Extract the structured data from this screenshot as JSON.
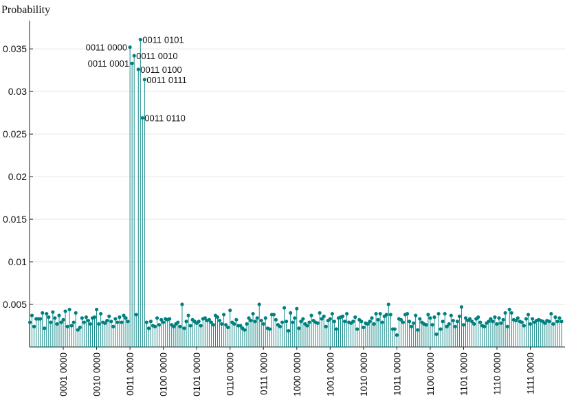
{
  "chart_data": {
    "type": "stem",
    "title": "",
    "ylabel": "Probability",
    "xlabel": "",
    "ylim": [
      0,
      0.0385
    ],
    "xlim": [
      -0.5,
      255.5
    ],
    "grid": "horizontal",
    "color": "#00807f",
    "n_states": 256,
    "yticks": [
      0.005,
      0.01,
      0.015,
      0.02,
      0.025,
      0.03,
      0.035
    ],
    "ytick_labels": [
      "0.005",
      "0.01",
      "0.015",
      "0.02",
      "0.025",
      "0.03",
      "0.035"
    ],
    "xtick_positions": [
      16,
      32,
      48,
      64,
      80,
      96,
      112,
      128,
      144,
      160,
      176,
      192,
      208,
      224,
      240
    ],
    "xtick_labels": [
      "0001 0000",
      "0010 0000",
      "0011 0000",
      "0100 0000",
      "0101 0000",
      "0110 0000",
      "0111 0000",
      "1000 0000",
      "1001 0000",
      "1010 0000",
      "1011 0000",
      "1100 0000",
      "1101 0000",
      "1110 0000",
      "1111 0000"
    ],
    "peaks": [
      {
        "label": "0011 0000",
        "x": 48,
        "y": 0.0352
      },
      {
        "label": "0011 0001",
        "x": 49,
        "y": 0.0333
      },
      {
        "label": "0011 0010",
        "x": 50,
        "y": 0.0342
      },
      {
        "label": "0011 0100",
        "x": 52,
        "y": 0.0326
      },
      {
        "label": "0011 0101",
        "x": 53,
        "y": 0.0361
      },
      {
        "label": "0011 0110",
        "x": 54,
        "y": 0.0269
      },
      {
        "label": "0011 0111",
        "x": 55,
        "y": 0.0314
      }
    ],
    "values": [
      0.0029,
      0.0037,
      0.0024,
      0.0033,
      0.0033,
      0.0033,
      0.004,
      0.0022,
      0.0039,
      0.0035,
      0.0029,
      0.0041,
      0.0034,
      0.0027,
      0.0037,
      0.0029,
      0.0032,
      0.0042,
      0.0024,
      0.0044,
      0.0025,
      0.0029,
      0.004,
      0.002,
      0.0023,
      0.0034,
      0.0029,
      0.0035,
      0.0031,
      0.0027,
      0.0034,
      0.0035,
      0.0044,
      0.0027,
      0.0039,
      0.0029,
      0.0028,
      0.0031,
      0.0036,
      0.003,
      0.0024,
      0.0033,
      0.0029,
      0.0035,
      0.0029,
      0.0037,
      0.0034,
      0.003,
      0.0352,
      0.0333,
      0.0342,
      0.0038,
      0.0326,
      0.0361,
      0.0269,
      0.0314,
      0.0029,
      0.0022,
      0.003,
      0.0025,
      0.0024,
      0.0034,
      0.0026,
      0.0032,
      0.0029,
      0.0033,
      0.0032,
      0.0033,
      0.0026,
      0.0024,
      0.0027,
      0.0029,
      0.0024,
      0.005,
      0.0022,
      0.003,
      0.0037,
      0.0025,
      0.0032,
      0.003,
      0.0028,
      0.003,
      0.0025,
      0.0033,
      0.0034,
      0.0031,
      0.0032,
      0.0029,
      0.0026,
      0.0037,
      0.0035,
      0.0031,
      0.0027,
      0.0038,
      0.0026,
      0.0023,
      0.0043,
      0.0029,
      0.0027,
      0.0032,
      0.0025,
      0.0025,
      0.0022,
      0.002,
      0.0027,
      0.0034,
      0.0031,
      0.0039,
      0.003,
      0.0034,
      0.005,
      0.0031,
      0.0027,
      0.0034,
      0.0022,
      0.0021,
      0.0038,
      0.0038,
      0.0032,
      0.0026,
      0.0024,
      0.0029,
      0.0046,
      0.003,
      0.0019,
      0.004,
      0.0029,
      0.0034,
      0.0045,
      0.0022,
      0.003,
      0.0033,
      0.0027,
      0.0025,
      0.0029,
      0.0037,
      0.0031,
      0.0029,
      0.0028,
      0.004,
      0.0033,
      0.0036,
      0.0024,
      0.0031,
      0.0033,
      0.0039,
      0.003,
      0.0021,
      0.0034,
      0.0035,
      0.0036,
      0.003,
      0.0039,
      0.0029,
      0.0028,
      0.003,
      0.0035,
      0.0021,
      0.0032,
      0.003,
      0.0023,
      0.0028,
      0.0027,
      0.003,
      0.0034,
      0.0027,
      0.0039,
      0.0032,
      0.0039,
      0.0029,
      0.0036,
      0.0038,
      0.005,
      0.0038,
      0.0021,
      0.0021,
      0.0014,
      0.0033,
      0.0032,
      0.0029,
      0.0038,
      0.0039,
      0.003,
      0.0024,
      0.0028,
      0.0037,
      0.002,
      0.0033,
      0.0029,
      0.0027,
      0.0026,
      0.0038,
      0.0034,
      0.0026,
      0.0035,
      0.0015,
      0.0039,
      0.0021,
      0.003,
      0.0039,
      0.0024,
      0.0027,
      0.0037,
      0.0031,
      0.0024,
      0.003,
      0.0036,
      0.0047,
      0.0026,
      0.0034,
      0.0031,
      0.0033,
      0.003,
      0.0027,
      0.0033,
      0.0035,
      0.0029,
      0.0025,
      0.0024,
      0.0028,
      0.003,
      0.0033,
      0.003,
      0.0035,
      0.0027,
      0.0034,
      0.0028,
      0.0032,
      0.004,
      0.0024,
      0.0044,
      0.004,
      0.0032,
      0.0031,
      0.0034,
      0.003,
      0.0029,
      0.0025,
      0.0033,
      0.0038,
      0.0027,
      0.0033,
      0.0029,
      0.0031,
      0.0032,
      0.0031,
      0.003,
      0.0028,
      0.0031,
      0.003,
      0.0039,
      0.0027,
      0.0035,
      0.003,
      0.0034,
      0.003
    ]
  }
}
